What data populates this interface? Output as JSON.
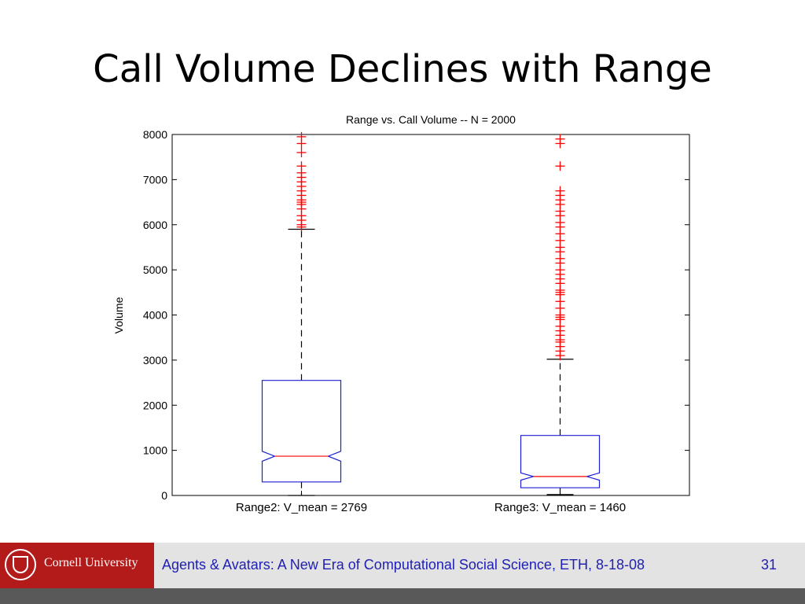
{
  "slide": {
    "title": "Call Volume Declines with Range",
    "footer_text": "Agents & Avatars: A New Era of Computational Social Science, ETH, 8-18-08",
    "page_number": "31",
    "logo_text": "Cornell University",
    "logo_color": "#b31b1b"
  },
  "chart_data": {
    "type": "box",
    "title": "Range vs. Call Volume -- N = 2000",
    "xlabel": "",
    "ylabel": "Volume",
    "ylim": [
      0,
      8000
    ],
    "yticks": [
      0,
      1000,
      2000,
      3000,
      4000,
      5000,
      6000,
      7000,
      8000
    ],
    "notched": true,
    "grid": false,
    "colors": {
      "box": "#1f1fd6",
      "median": "#ff0000",
      "outlier": "#ff0000",
      "whisker": "#000000"
    },
    "categories": [
      "Range2: V_mean = 2769",
      "Range3: V_mean = 1460"
    ],
    "boxes": [
      {
        "label": "Range2: V_mean = 2769",
        "whisker_low": 0,
        "q1": 300,
        "notch_low": 760,
        "median": 870,
        "notch_high": 980,
        "q3": 2550,
        "whisker_high": 5900,
        "outliers": [
          5950,
          6000,
          6100,
          6200,
          6350,
          6450,
          6500,
          6550,
          6650,
          6750,
          6850,
          6950,
          7050,
          7150,
          7300,
          7600,
          7800,
          7950
        ]
      },
      {
        "label": "Range3: V_mean = 1460",
        "whisker_low": 20,
        "q1": 170,
        "notch_low": 340,
        "median": 420,
        "notch_high": 500,
        "q3": 1330,
        "whisker_high": 3020,
        "outliers": [
          3100,
          3200,
          3300,
          3400,
          3450,
          3550,
          3650,
          3750,
          3900,
          3950,
          4000,
          4150,
          4300,
          4450,
          4500,
          4550,
          4700,
          4800,
          4900,
          5000,
          5150,
          5250,
          5400,
          5500,
          5650,
          5800,
          5950,
          6050,
          6200,
          6300,
          6450,
          6550,
          6650,
          6750,
          7300,
          7800,
          7900
        ]
      }
    ]
  }
}
